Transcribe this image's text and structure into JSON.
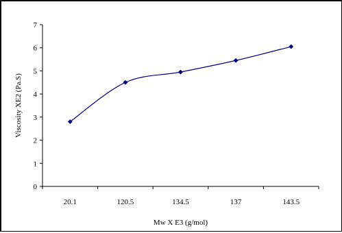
{
  "chart_data": {
    "type": "line",
    "title": "",
    "xlabel": "Mw X E3 (g/mol)",
    "ylabel": "Viscosity XE2 (Pa.S)",
    "categories": [
      "20.1",
      "120.5",
      "134.5",
      "137",
      "143.5"
    ],
    "series": [
      {
        "values": [
          2.8,
          4.5,
          4.95,
          5.45,
          6.05
        ],
        "color": "#000080"
      }
    ],
    "ylim": [
      0,
      7
    ],
    "yticks": [
      "0",
      "1",
      "2",
      "3",
      "4",
      "5",
      "6",
      "7"
    ],
    "grid": false,
    "legend": "none",
    "smooth": true,
    "marker": "diamond"
  }
}
